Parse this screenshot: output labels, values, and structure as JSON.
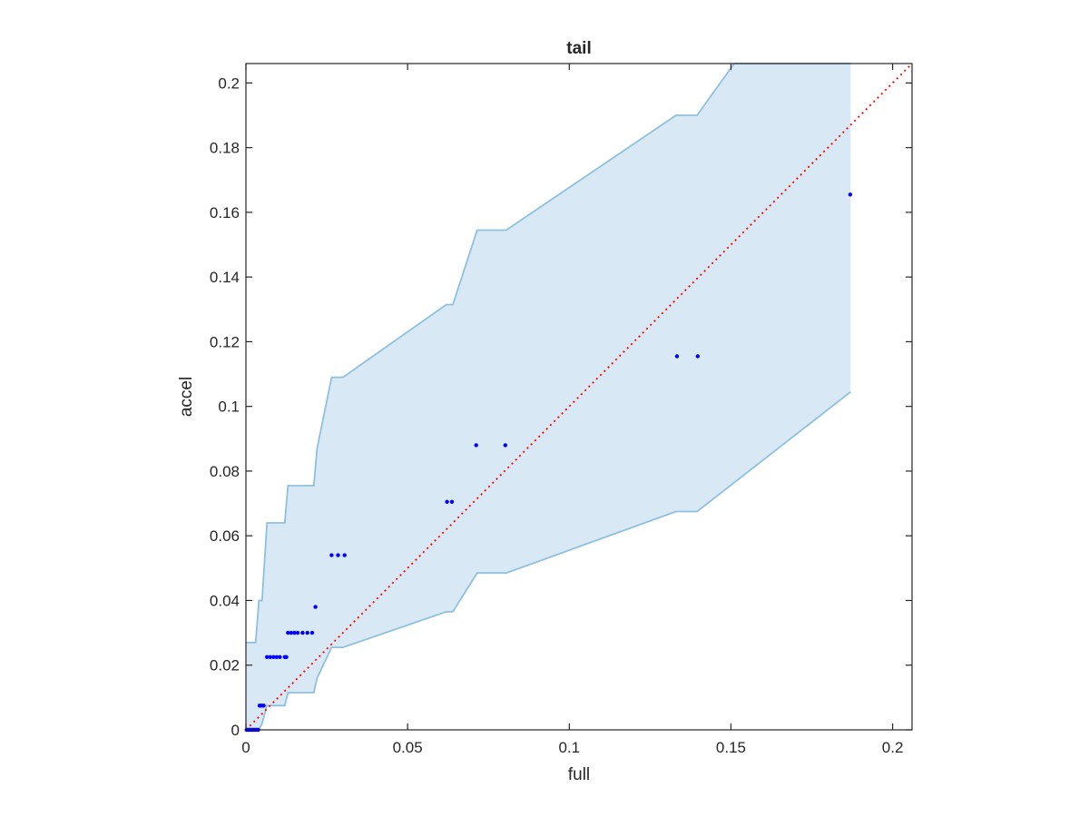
{
  "chart_data": {
    "type": "scatter",
    "title": "tail",
    "xlabel": "full",
    "ylabel": "accel",
    "xlim": [
      0,
      0.206
    ],
    "ylim": [
      0,
      0.206
    ],
    "grid": false,
    "legend": "none",
    "x_ticks": [
      0,
      0.05,
      0.1,
      0.15,
      0.2
    ],
    "x_tick_labels": [
      "0",
      "0.05",
      "0.1",
      "0.15",
      "0.2"
    ],
    "y_ticks": [
      0,
      0.02,
      0.04,
      0.06,
      0.08,
      0.1,
      0.12,
      0.14,
      0.16,
      0.18,
      0.2
    ],
    "y_tick_labels": [
      "0",
      "0.02",
      "0.04",
      "0.06",
      "0.08",
      "0.1",
      "0.12",
      "0.14",
      "0.16",
      "0.18",
      "0.2"
    ],
    "confidence_band": {
      "color": "#d9e8f5",
      "edge_color": "#8fc0dd",
      "upper": [
        [
          0,
          0.027
        ],
        [
          0.003,
          0.027
        ],
        [
          0.004,
          0.04
        ],
        [
          0.005,
          0.04
        ],
        [
          0.0065,
          0.064
        ],
        [
          0.012,
          0.064
        ],
        [
          0.013,
          0.0755
        ],
        [
          0.021,
          0.0755
        ],
        [
          0.022,
          0.087
        ],
        [
          0.0265,
          0.109
        ],
        [
          0.03,
          0.109
        ],
        [
          0.062,
          0.1315
        ],
        [
          0.064,
          0.1315
        ],
        [
          0.0715,
          0.1545
        ],
        [
          0.0805,
          0.1545
        ],
        [
          0.133,
          0.19
        ],
        [
          0.1395,
          0.19
        ],
        [
          0.151,
          0.206
        ],
        [
          0.187,
          0.206
        ]
      ],
      "lower": [
        [
          0,
          0
        ],
        [
          0.004,
          0
        ],
        [
          0.005,
          0.002
        ],
        [
          0.0065,
          0.0075
        ],
        [
          0.012,
          0.0075
        ],
        [
          0.013,
          0.0115
        ],
        [
          0.021,
          0.0115
        ],
        [
          0.022,
          0.016
        ],
        [
          0.0265,
          0.0255
        ],
        [
          0.03,
          0.0255
        ],
        [
          0.062,
          0.0365
        ],
        [
          0.064,
          0.0365
        ],
        [
          0.0715,
          0.0485
        ],
        [
          0.0805,
          0.0485
        ],
        [
          0.133,
          0.0675
        ],
        [
          0.1395,
          0.0675
        ],
        [
          0.187,
          0.1045
        ]
      ]
    },
    "reference_line": {
      "style": "dotted",
      "color": "#ff0000",
      "from": [
        0,
        0
      ],
      "to": [
        0.206,
        0.206
      ]
    },
    "series": [
      {
        "marker_color": "#0000ff",
        "x": [
          0.0002,
          0.0006,
          0.001,
          0.0014,
          0.0018,
          0.0022,
          0.0026,
          0.003,
          0.0034,
          0.0038,
          0.0042,
          0.0045,
          0.005,
          0.0055,
          0.0065,
          0.0075,
          0.0085,
          0.0095,
          0.0105,
          0.012,
          0.0125,
          0.013,
          0.014,
          0.015,
          0.016,
          0.0175,
          0.019,
          0.0205,
          0.0215,
          0.0265,
          0.0285,
          0.0305,
          0.0622,
          0.0637,
          0.0712,
          0.0802,
          0.1333,
          0.1397,
          0.1869
        ],
        "y": [
          0,
          0,
          0,
          0,
          0,
          0,
          0,
          0,
          0,
          0,
          0.0075,
          0.0075,
          0.0075,
          0.0075,
          0.0225,
          0.0225,
          0.0225,
          0.0225,
          0.0225,
          0.0225,
          0.0225,
          0.03,
          0.03,
          0.03,
          0.03,
          0.03,
          0.03,
          0.03,
          0.038,
          0.054,
          0.054,
          0.054,
          0.0705,
          0.0705,
          0.088,
          0.088,
          0.1155,
          0.1155,
          0.1655
        ]
      }
    ]
  }
}
